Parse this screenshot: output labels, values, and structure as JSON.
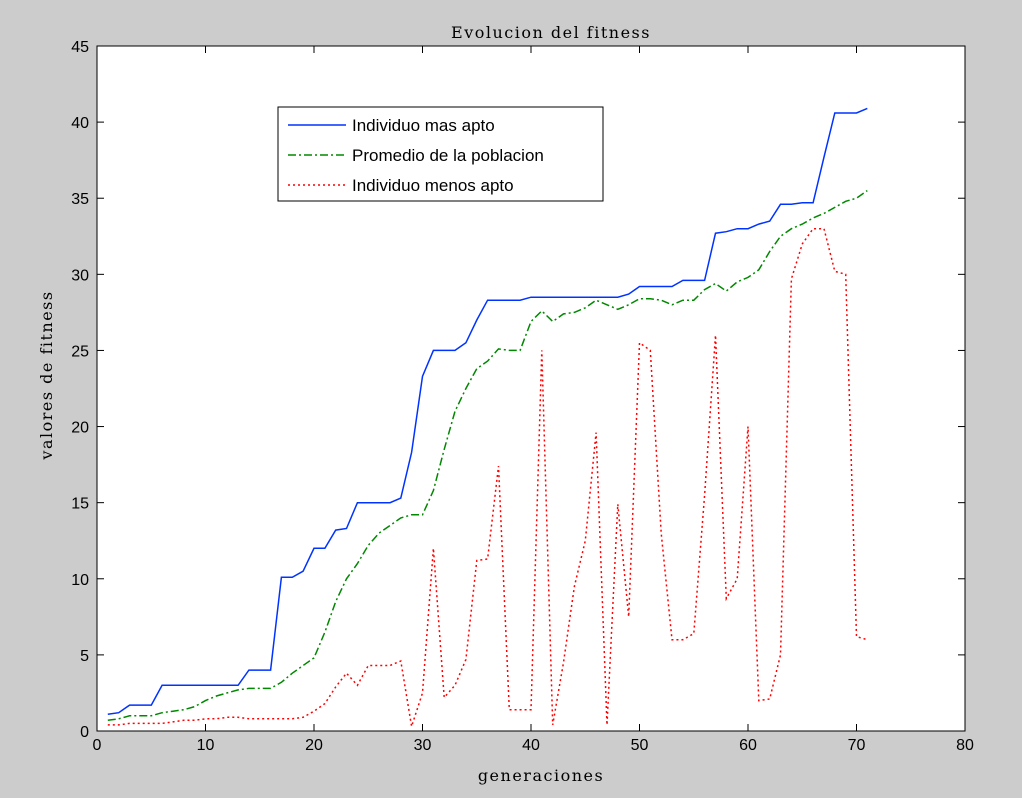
{
  "chart_data": {
    "type": "line",
    "title": "Evolucion del fitness",
    "xlabel": "generaciones",
    "ylabel": "valores de fitness",
    "xlim": [
      0,
      80
    ],
    "ylim": [
      0,
      45
    ],
    "xticks": [
      "0",
      "10",
      "20",
      "30",
      "40",
      "50",
      "60",
      "70",
      "80"
    ],
    "yticks": [
      "0",
      "5",
      "10",
      "15",
      "20",
      "25",
      "30",
      "35",
      "40",
      "45"
    ],
    "grid": false,
    "legend_position": "top-left",
    "x": [
      1,
      2,
      3,
      4,
      5,
      6,
      7,
      8,
      9,
      10,
      11,
      12,
      13,
      14,
      15,
      16,
      17,
      18,
      19,
      20,
      21,
      22,
      23,
      24,
      25,
      26,
      27,
      28,
      29,
      30,
      31,
      32,
      33,
      34,
      35,
      36,
      37,
      38,
      39,
      40,
      41,
      42,
      43,
      44,
      45,
      46,
      47,
      48,
      49,
      50,
      51,
      52,
      53,
      54,
      55,
      56,
      57,
      58,
      59,
      60,
      61,
      62,
      63,
      64,
      65,
      66,
      67,
      68,
      69,
      70,
      71
    ],
    "series": [
      {
        "name": "Individuo mas apto",
        "color": "#0033ff",
        "style": "solid",
        "values": [
          1.1,
          1.2,
          1.7,
          1.7,
          1.7,
          3.0,
          3.0,
          3.0,
          3.0,
          3.0,
          3.0,
          3.0,
          3.0,
          4.0,
          4.0,
          4.0,
          10.1,
          10.1,
          10.5,
          12.0,
          12.0,
          13.2,
          13.3,
          15.0,
          15.0,
          15.0,
          15.0,
          15.3,
          18.3,
          23.3,
          25.0,
          25.0,
          25.0,
          25.5,
          27.0,
          28.3,
          28.3,
          28.3,
          28.3,
          28.5,
          28.5,
          28.5,
          28.5,
          28.5,
          28.5,
          28.5,
          28.5,
          28.5,
          28.7,
          29.2,
          29.2,
          29.2,
          29.2,
          29.6,
          29.6,
          29.6,
          32.7,
          32.8,
          33.0,
          33.0,
          33.3,
          33.5,
          34.6,
          34.6,
          34.7,
          34.7,
          37.7,
          40.6,
          40.6,
          40.6,
          40.9
        ]
      },
      {
        "name": "Promedio de la poblacion",
        "color": "#008800",
        "style": "dash-dot",
        "values": [
          0.7,
          0.8,
          1.0,
          1.0,
          1.0,
          1.2,
          1.3,
          1.4,
          1.6,
          2.0,
          2.3,
          2.5,
          2.7,
          2.8,
          2.8,
          2.8,
          3.2,
          3.8,
          4.3,
          4.8,
          6.5,
          8.5,
          10.0,
          11.0,
          12.2,
          13.0,
          13.5,
          14.0,
          14.2,
          14.2,
          15.8,
          18.5,
          21.0,
          22.5,
          23.8,
          24.3,
          25.1,
          25.0,
          25.0,
          26.9,
          27.6,
          26.9,
          27.4,
          27.5,
          27.8,
          28.3,
          28.0,
          27.7,
          28.0,
          28.4,
          28.4,
          28.3,
          28.0,
          28.3,
          28.3,
          29.0,
          29.4,
          28.9,
          29.5,
          29.8,
          30.3,
          31.5,
          32.5,
          33.0,
          33.3,
          33.7,
          34.0,
          34.4,
          34.8,
          35.0,
          35.5
        ]
      },
      {
        "name": "Individuo menos apto",
        "color": "#ff0000",
        "style": "dotted",
        "values": [
          0.4,
          0.4,
          0.5,
          0.5,
          0.5,
          0.5,
          0.6,
          0.7,
          0.7,
          0.8,
          0.8,
          0.9,
          0.9,
          0.8,
          0.8,
          0.8,
          0.8,
          0.8,
          0.9,
          1.3,
          1.8,
          2.9,
          3.8,
          3.0,
          4.3,
          4.3,
          4.3,
          4.6,
          0.3,
          2.5,
          12.0,
          2.2,
          3.0,
          4.7,
          11.2,
          11.3,
          17.4,
          1.4,
          1.4,
          1.4,
          25.0,
          0.4,
          4.5,
          9.5,
          12.5,
          19.6,
          0.4,
          14.9,
          7.5,
          25.5,
          25.0,
          13.0,
          6.0,
          6.0,
          6.4,
          15.5,
          26.0,
          8.7,
          10.0,
          20.0,
          2.0,
          2.1,
          5.0,
          29.7,
          32.0,
          33.0,
          33.0,
          30.2,
          30.0,
          6.2,
          6.0
        ]
      }
    ]
  }
}
